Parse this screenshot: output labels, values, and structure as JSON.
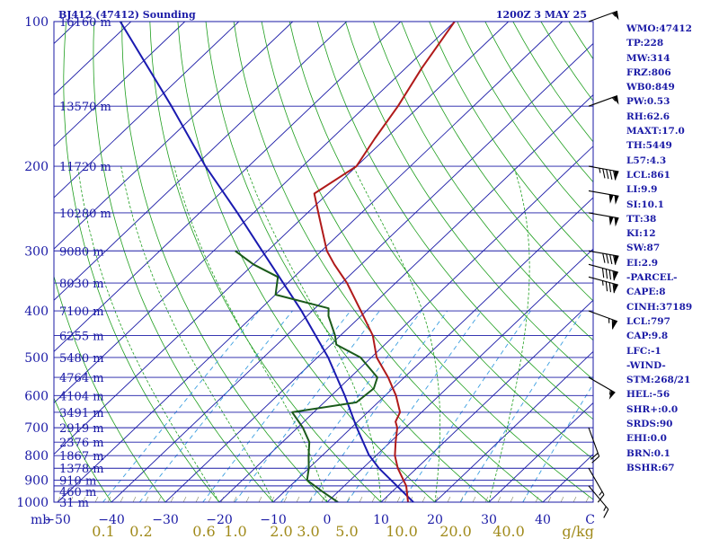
{
  "header": {
    "station": "BJ412 (47412) Sounding",
    "time": "1200Z  3 MAY 25"
  },
  "indices": [
    "WMO:47412",
    "TP:228",
    "MW:314",
    "FRZ:806",
    "WB0:849",
    "PW:0.53",
    "RH:62.6",
    "MAXT:17.0",
    "TH:5449",
    "L57:4.3",
    "LCL:861",
    "LI:9.9",
    "SI:10.1",
    "TT:38",
    "KI:12",
    "SW:87",
    "EI:2.9",
    "-PARCEL-",
    "CAPE:8",
    "CINH:37189",
    "LCL:797",
    "CAP:9.8",
    "LFC:-1",
    "-WIND-",
    "STM:268/21",
    "HEL:-56",
    "SHR+:0.0",
    "SRDS:90",
    "EHI:0.0",
    "BRN:0.1",
    "BSHR:67"
  ],
  "colors": {
    "frame": "#1a1aa6",
    "isobar": "#1a1aa6",
    "isotherm": "#1a1aa6",
    "dry_adiabat": "#1e9e1e",
    "moist_adiabat": "#1e9e1e",
    "mixing_ratio": "#3a9ee0",
    "temperature": "#b01a1a",
    "dewpoint": "#1a5a1a",
    "parcel": "#1a1ab0",
    "axis_labels": "#1a1aa6",
    "mixing_labels": "#a08a1a"
  },
  "chart_data": {
    "type": "line",
    "diagram": "skew-T log-p",
    "x_axis_unit": "C",
    "x_ticks": [
      -50,
      -40,
      -30,
      -20,
      -10,
      0,
      10,
      20,
      30,
      40
    ],
    "x_unit_label": "C",
    "y_axis_unit": "mb",
    "y_unit_label": "mb",
    "pressure_levels": [
      {
        "p": 100,
        "label": "100"
      },
      {
        "p": 200,
        "label": "200"
      },
      {
        "p": 300,
        "label": "300"
      },
      {
        "p": 400,
        "label": "400"
      },
      {
        "p": 500,
        "label": "500"
      },
      {
        "p": 600,
        "label": "600"
      },
      {
        "p": 700,
        "label": "700"
      },
      {
        "p": 800,
        "label": "800"
      },
      {
        "p": 900,
        "label": "900"
      },
      {
        "p": 1000,
        "label": "1000"
      }
    ],
    "extra_isobars": [
      150,
      250,
      350,
      450,
      550,
      650,
      750,
      850,
      925,
      950
    ],
    "height_labels": [
      {
        "p": 100,
        "label": "16160 m"
      },
      {
        "p": 150,
        "label": "13570 m"
      },
      {
        "p": 200,
        "label": "11720 m"
      },
      {
        "p": 250,
        "label": "10280 m"
      },
      {
        "p": 300,
        "label": "9080 m"
      },
      {
        "p": 350,
        "label": "8030 m"
      },
      {
        "p": 400,
        "label": "7100 m"
      },
      {
        "p": 450,
        "label": "6255 m"
      },
      {
        "p": 500,
        "label": "5480 m"
      },
      {
        "p": 550,
        "label": "4764 m"
      },
      {
        "p": 600,
        "label": "4104 m"
      },
      {
        "p": 650,
        "label": "3491 m"
      },
      {
        "p": 700,
        "label": "2919 m"
      },
      {
        "p": 750,
        "label": "2376 m"
      },
      {
        "p": 800,
        "label": "1867 m"
      },
      {
        "p": 850,
        "label": "1378 m"
      },
      {
        "p": 900,
        "label": "910 m"
      },
      {
        "p": 950,
        "label": "460 m"
      },
      {
        "p": 1000,
        "label": "31 m"
      }
    ],
    "mixing_ratio_labels": [
      0.1,
      0.2,
      0.6,
      1.0,
      2.0,
      3.0,
      5.0,
      10.0,
      20.0,
      40.0
    ],
    "mixing_ratio_labels_text": [
      "0.1",
      "0.2",
      "0.6",
      "1.0",
      "2.0",
      "3.0",
      "5.0",
      "10.0",
      "20.0",
      "40.0"
    ],
    "mixing_ratio_unit": "g/kg",
    "temperature_profile": [
      {
        "p": 1000,
        "t": 15.0
      },
      {
        "p": 925,
        "t": 11.5
      },
      {
        "p": 850,
        "t": 6.5
      },
      {
        "p": 800,
        "t": 3.5
      },
      {
        "p": 750,
        "t": 1.0
      },
      {
        "p": 700,
        "t": -1.5
      },
      {
        "p": 680,
        "t": -3.0
      },
      {
        "p": 650,
        "t": -4.0
      },
      {
        "p": 600,
        "t": -8.0
      },
      {
        "p": 550,
        "t": -13.0
      },
      {
        "p": 500,
        "t": -19.0
      },
      {
        "p": 450,
        "t": -24.0
      },
      {
        "p": 400,
        "t": -31.0
      },
      {
        "p": 350,
        "t": -39.0
      },
      {
        "p": 320,
        "t": -45.0
      },
      {
        "p": 300,
        "t": -49.0
      },
      {
        "p": 250,
        "t": -58.0
      },
      {
        "p": 228,
        "t": -62.5
      },
      {
        "p": 200,
        "t": -60.0
      },
      {
        "p": 175,
        "t": -62.0
      },
      {
        "p": 150,
        "t": -64.0
      },
      {
        "p": 125,
        "t": -67.0
      },
      {
        "p": 100,
        "t": -70.0
      }
    ],
    "dewpoint_profile": [
      {
        "p": 1000,
        "td": 2.0
      },
      {
        "p": 950,
        "td": -3.0
      },
      {
        "p": 900,
        "td": -8.0
      },
      {
        "p": 850,
        "td": -10.0
      },
      {
        "p": 800,
        "td": -12.5
      },
      {
        "p": 750,
        "td": -15.0
      },
      {
        "p": 700,
        "td": -19.0
      },
      {
        "p": 650,
        "td": -24.0
      },
      {
        "p": 620,
        "td": -14.0
      },
      {
        "p": 580,
        "td": -13.5
      },
      {
        "p": 550,
        "td": -15.0
      },
      {
        "p": 500,
        "td": -22.0
      },
      {
        "p": 470,
        "td": -29.0
      },
      {
        "p": 450,
        "td": -31.0
      },
      {
        "p": 410,
        "td": -36.0
      },
      {
        "p": 395,
        "td": -37.5
      },
      {
        "p": 370,
        "td": -50.0
      },
      {
        "p": 340,
        "td": -53.0
      },
      {
        "p": 320,
        "td": -60.0
      },
      {
        "p": 300,
        "td": -66.0
      }
    ],
    "parcel_profile": [
      {
        "p": 1000,
        "t": 16.0
      },
      {
        "p": 850,
        "t": 3.0
      },
      {
        "p": 797,
        "t": -1.5
      },
      {
        "p": 700,
        "t": -9.0
      },
      {
        "p": 600,
        "t": -17.5
      },
      {
        "p": 500,
        "t": -28.0
      },
      {
        "p": 400,
        "t": -42.0
      },
      {
        "p": 300,
        "t": -61.0
      },
      {
        "p": 250,
        "t": -73.0
      },
      {
        "p": 200,
        "t": -88.0
      },
      {
        "p": 150,
        "t": -106.0
      },
      {
        "p": 100,
        "t": -132.0
      }
    ],
    "wind_barbs": [
      {
        "p": 100,
        "dir": 250,
        "spd": 55
      },
      {
        "p": 150,
        "dir": 250,
        "spd": 55
      },
      {
        "p": 200,
        "dir": 280,
        "spd": 95
      },
      {
        "p": 225,
        "dir": 280,
        "spd": 100
      },
      {
        "p": 250,
        "dir": 280,
        "spd": 100
      },
      {
        "p": 300,
        "dir": 280,
        "spd": 90
      },
      {
        "p": 320,
        "dir": 285,
        "spd": 90
      },
      {
        "p": 340,
        "dir": 285,
        "spd": 85
      },
      {
        "p": 400,
        "dir": 290,
        "spd": 65
      },
      {
        "p": 550,
        "dir": 300,
        "spd": 55
      },
      {
        "p": 700,
        "dir": 340,
        "spd": 20
      },
      {
        "p": 850,
        "dir": 330,
        "spd": 15
      },
      {
        "p": 925,
        "dir": 320,
        "spd": 15
      }
    ]
  }
}
